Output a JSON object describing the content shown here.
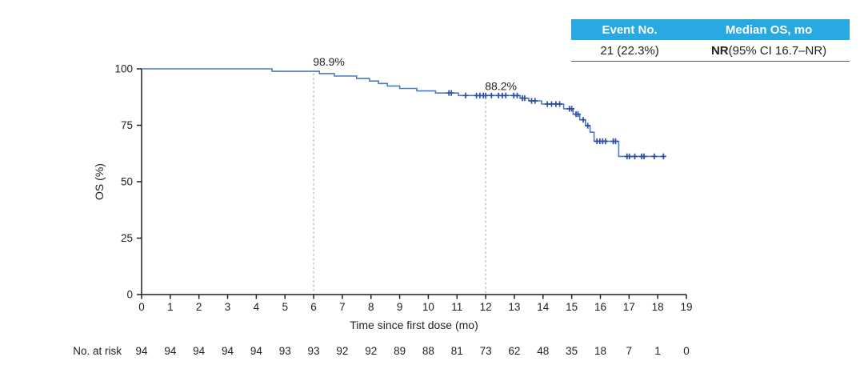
{
  "summary_table": {
    "headers": [
      "Event No.",
      "Median OS, mo"
    ],
    "row": {
      "event_no": "21 (22.3%)",
      "median_os_bold": "NR",
      "median_os_rest": " (95% CI 16.7–NR)"
    },
    "header_bg": "#29a9e1",
    "header_text_color": "#ffffff"
  },
  "chart_data": {
    "type": "line",
    "subtype": "kaplan-meier-step",
    "title": "",
    "xlabel": "Time since first dose (mo)",
    "ylabel": "OS (%)",
    "xlim": [
      0,
      19
    ],
    "ylim": [
      0,
      100
    ],
    "xticks": [
      0,
      1,
      2,
      3,
      4,
      5,
      6,
      7,
      8,
      9,
      10,
      11,
      12,
      13,
      14,
      15,
      16,
      17,
      18,
      19
    ],
    "yticks": [
      0,
      25,
      50,
      75,
      100
    ],
    "grid": false,
    "legend": "none",
    "line_color": "#4d7cbe",
    "censor_color": "#2b4ea2",
    "axis_color": "#231f20",
    "text_color": "#231f20",
    "ref_line_color": "#a7a9ac",
    "series": [
      {
        "name": "OS",
        "steps": [
          [
            0,
            100
          ],
          [
            4.55,
            98.9
          ],
          [
            6.2,
            97.9
          ],
          [
            6.72,
            96.8
          ],
          [
            7.5,
            95.7
          ],
          [
            7.95,
            94.6
          ],
          [
            8.26,
            93.5
          ],
          [
            8.57,
            92.4
          ],
          [
            9.0,
            91.3
          ],
          [
            9.6,
            90.2
          ],
          [
            10.25,
            89.3
          ],
          [
            11.05,
            88.2
          ],
          [
            13.2,
            87.0
          ],
          [
            13.5,
            85.8
          ],
          [
            13.95,
            84.4
          ],
          [
            14.72,
            82.3
          ],
          [
            15.05,
            79.9
          ],
          [
            15.28,
            77.4
          ],
          [
            15.48,
            74.8
          ],
          [
            15.64,
            71.9
          ],
          [
            15.78,
            67.9
          ],
          [
            16.64,
            61.2
          ]
        ],
        "end_time": 18.28
      }
    ],
    "censor_marks": [
      [
        10.72,
        89.3
      ],
      [
        10.8,
        89.3
      ],
      [
        11.3,
        88.2
      ],
      [
        11.68,
        88.2
      ],
      [
        11.8,
        88.2
      ],
      [
        11.92,
        88.2
      ],
      [
        12.0,
        88.2
      ],
      [
        12.2,
        88.2
      ],
      [
        12.45,
        88.2
      ],
      [
        12.58,
        88.2
      ],
      [
        12.7,
        88.2
      ],
      [
        12.98,
        88.2
      ],
      [
        13.1,
        88.2
      ],
      [
        13.28,
        87.0
      ],
      [
        13.36,
        87.0
      ],
      [
        13.6,
        85.8
      ],
      [
        13.72,
        85.8
      ],
      [
        14.15,
        84.4
      ],
      [
        14.3,
        84.4
      ],
      [
        14.45,
        84.4
      ],
      [
        14.58,
        84.4
      ],
      [
        14.92,
        82.3
      ],
      [
        15.0,
        82.3
      ],
      [
        15.15,
        79.9
      ],
      [
        15.22,
        79.9
      ],
      [
        15.4,
        77.4
      ],
      [
        15.56,
        74.8
      ],
      [
        15.88,
        67.9
      ],
      [
        15.98,
        67.9
      ],
      [
        16.08,
        67.9
      ],
      [
        16.18,
        67.9
      ],
      [
        16.45,
        67.9
      ],
      [
        16.53,
        67.9
      ],
      [
        16.93,
        61.2
      ],
      [
        17.01,
        61.2
      ],
      [
        17.2,
        61.2
      ],
      [
        17.44,
        61.2
      ],
      [
        17.52,
        61.2
      ],
      [
        17.88,
        61.2
      ],
      [
        18.2,
        61.2
      ]
    ],
    "annotations": [
      {
        "x": 6,
        "y": 98.9,
        "label": "98.9%"
      },
      {
        "x": 12,
        "y": 88.2,
        "label": "88.2%"
      }
    ],
    "reference_lines": [
      {
        "x": 6,
        "top": 98.9
      },
      {
        "x": 12,
        "top": 88.2
      }
    ],
    "risk_table": {
      "label": "No. at risk",
      "times": [
        0,
        1,
        2,
        3,
        4,
        5,
        6,
        7,
        8,
        9,
        10,
        11,
        12,
        13,
        14,
        15,
        16,
        17,
        18,
        19
      ],
      "values": [
        94,
        94,
        94,
        94,
        94,
        93,
        93,
        92,
        92,
        89,
        88,
        81,
        73,
        62,
        48,
        35,
        18,
        7,
        1,
        0
      ]
    }
  }
}
